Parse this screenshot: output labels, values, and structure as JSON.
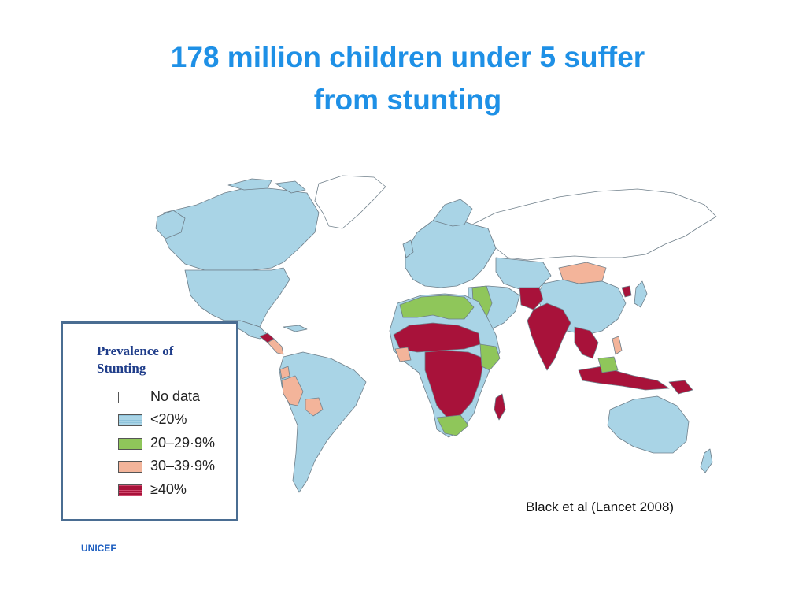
{
  "title": {
    "line1": "178 million children under 5 suffer",
    "line2": "from stunting"
  },
  "legend": {
    "title_line1": "Prevalence of",
    "title_line2": "Stunting",
    "items": [
      {
        "label": "No data",
        "color": "#ffffff"
      },
      {
        "label": "<20%",
        "color": "#a9d4e6"
      },
      {
        "label": "20–29·9%",
        "color": "#8fc65a"
      },
      {
        "label": "30–39·9%",
        "color": "#f3b49a"
      },
      {
        "label": "≥40%",
        "color": "#a8123a"
      }
    ]
  },
  "map": {
    "regions": [
      {
        "name": "Greenland",
        "category": "No data"
      },
      {
        "name": "Canada",
        "category": "<20%"
      },
      {
        "name": "United States",
        "category": "<20%"
      },
      {
        "name": "Guatemala",
        "category": "≥40%"
      },
      {
        "name": "Peru",
        "category": "30–39·9%"
      },
      {
        "name": "Bolivia",
        "category": "30–39·9%"
      },
      {
        "name": "North Africa",
        "category": "20–29·9%"
      },
      {
        "name": "Sahel",
        "category": "≥40%"
      },
      {
        "name": "Central Africa",
        "category": "≥40%"
      },
      {
        "name": "Madagascar",
        "category": "≥40%"
      },
      {
        "name": "Russia",
        "category": "No data"
      },
      {
        "name": "Mongolia",
        "category": "30–39·9%"
      },
      {
        "name": "China",
        "category": "<20%"
      },
      {
        "name": "India",
        "category": "≥40%"
      },
      {
        "name": "Indonesia",
        "category": "≥40%"
      },
      {
        "name": "Australia",
        "category": "<20%"
      }
    ]
  },
  "citation": "Black et al (Lancet 2008)",
  "footer": "UNICEF"
}
